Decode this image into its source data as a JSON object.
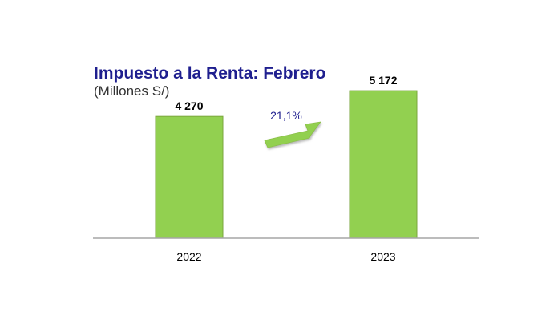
{
  "chart_data": {
    "type": "bar",
    "title": "Impuesto a la Renta: Febrero",
    "subtitle": "(Millones S/)",
    "categories": [
      "2022",
      "2023"
    ],
    "values": [
      4270,
      5172
    ],
    "value_labels": [
      "4 270",
      "5 172"
    ],
    "ylim": [
      0,
      5400
    ],
    "grid": false,
    "legend": "none",
    "annotation": {
      "text": "21,1%",
      "shape": "arrow-up-right"
    },
    "colors": {
      "bar_fill": "#92d050",
      "bar_stroke": "#7aa63c",
      "title": "#1f1f8f",
      "annotation_text": "#1f1f8f",
      "arrow_fill": "#92d050",
      "axis": "#a6a6a6"
    }
  }
}
